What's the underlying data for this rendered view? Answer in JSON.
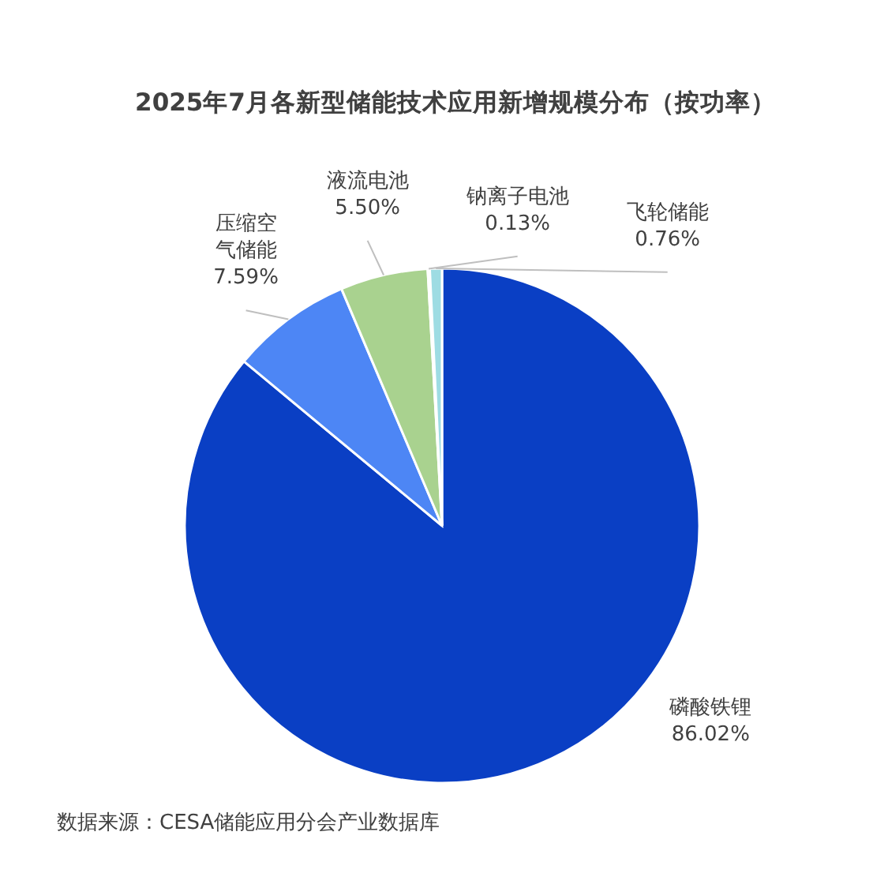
{
  "chart_data": {
    "type": "pie",
    "title": "2025年7月各新型储能技术应用新增规模分布（按功率）",
    "categories": [
      "磷酸铁锂",
      "压缩空气储能",
      "液流电池",
      "钠离子电池",
      "飞轮储能"
    ],
    "values": [
      86.02,
      7.59,
      5.5,
      0.13,
      0.76
    ],
    "value_labels": [
      "86.02%",
      "7.59%",
      "5.50%",
      "0.13%",
      "0.76%"
    ],
    "colors": [
      "#0a3fc4",
      "#4d86f5",
      "#a9d28f",
      "#f2f2f2",
      "#9edce3"
    ],
    "annotations": [
      "数据来源：CESA储能应用分会产业数据库"
    ]
  }
}
